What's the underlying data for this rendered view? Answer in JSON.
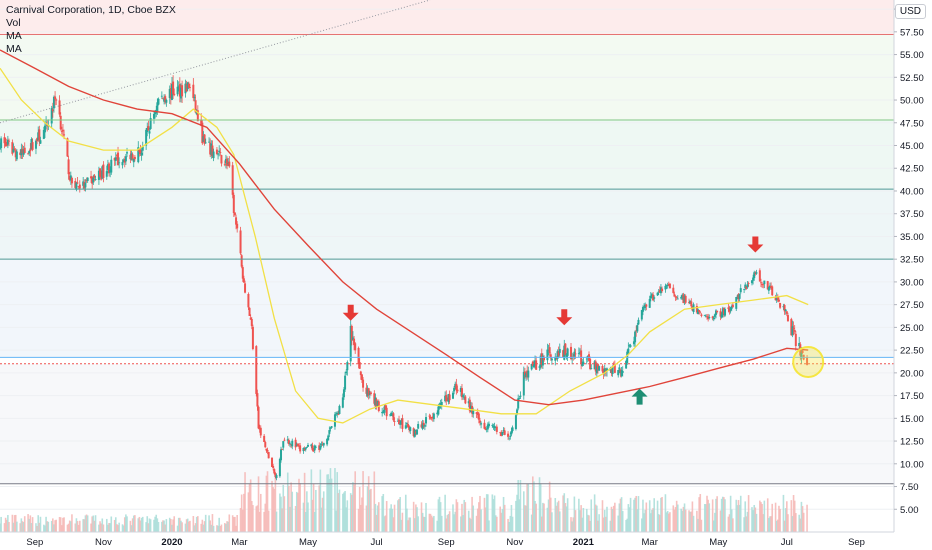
{
  "legend": {
    "title": "Carnival Corporation, 1D, Cboe BZX",
    "items": [
      "Vol",
      "MA",
      "MA"
    ],
    "currency": "USD"
  },
  "colors": {
    "up": "#26a69a",
    "down": "#ef5350",
    "ma_short": "#f2e046",
    "ma_long": "#e0443a",
    "arrow_down": "#e53935",
    "arrow_up": "#1e8e74",
    "circle": "#f5e642",
    "level_red": "#e57373",
    "level_green": "#81c784",
    "level_teal": "#4f9a94",
    "level_gray": "#787b86",
    "price_line": "#ef5350",
    "blue_line": "#64b5f6"
  },
  "chart_data": {
    "type": "candlestick",
    "title": "Carnival Corporation, 1D, Cboe BZX",
    "y_ticks": [
      "5.00",
      "7.50",
      "10.00",
      "12.50",
      "15.00",
      "17.50",
      "20.00",
      "22.50",
      "25.00",
      "27.50",
      "30.00",
      "32.50",
      "35.00",
      "37.50",
      "40.00",
      "42.50",
      "45.00",
      "47.50",
      "50.00",
      "52.50",
      "55.00",
      "57.50",
      "60.00"
    ],
    "x_ticks": [
      "Sep",
      "Nov",
      "2020",
      "Mar",
      "May",
      "Jul",
      "Sep",
      "Nov",
      "2021",
      "Mar",
      "May",
      "Jul",
      "Sep"
    ],
    "ylim": [
      2.5,
      61
    ],
    "price_path": [
      [
        "2019-08-01",
        45.5
      ],
      [
        "2019-08-20",
        44.0
      ],
      [
        "2019-09-10",
        46.5
      ],
      [
        "2019-09-20",
        50.5
      ],
      [
        "2019-10-03",
        41.0
      ],
      [
        "2019-10-15",
        40.5
      ],
      [
        "2019-11-15",
        43.5
      ],
      [
        "2019-12-05",
        44.5
      ],
      [
        "2019-12-20",
        50.0
      ],
      [
        "2020-01-02",
        51.0
      ],
      [
        "2020-01-17",
        51.5
      ],
      [
        "2020-01-30",
        45.0
      ],
      [
        "2020-02-10",
        44.0
      ],
      [
        "2020-02-20",
        43.0
      ],
      [
        "2020-02-25",
        38.0
      ],
      [
        "2020-03-05",
        30.0
      ],
      [
        "2020-03-12",
        25.0
      ],
      [
        "2020-03-18",
        14.0
      ],
      [
        "2020-04-02",
        8.5
      ],
      [
        "2020-04-10",
        13.0
      ],
      [
        "2020-04-24",
        11.5
      ],
      [
        "2020-05-14",
        12.0
      ],
      [
        "2020-06-01",
        17.0
      ],
      [
        "2020-06-08",
        24.5
      ],
      [
        "2020-06-20",
        18.0
      ],
      [
        "2020-07-10",
        15.5
      ],
      [
        "2020-08-03",
        13.5
      ],
      [
        "2020-08-25",
        16.0
      ],
      [
        "2020-09-10",
        18.5
      ],
      [
        "2020-10-01",
        14.5
      ],
      [
        "2020-10-28",
        13.0
      ],
      [
        "2020-11-09",
        19.5
      ],
      [
        "2020-11-25",
        21.5
      ],
      [
        "2020-12-10",
        22.5
      ],
      [
        "2020-12-31",
        21.5
      ],
      [
        "2021-01-20",
        20.0
      ],
      [
        "2021-02-05",
        20.5
      ],
      [
        "2021-02-25",
        27.5
      ],
      [
        "2021-03-15",
        29.5
      ],
      [
        "2021-04-01",
        28.0
      ],
      [
        "2021-04-20",
        26.0
      ],
      [
        "2021-05-10",
        27.0
      ],
      [
        "2021-06-03",
        31.0
      ],
      [
        "2021-06-20",
        28.5
      ],
      [
        "2021-07-01",
        26.5
      ],
      [
        "2021-07-10",
        23.0
      ],
      [
        "2021-07-19",
        21.0
      ]
    ],
    "moving_averages": [
      {
        "name": "MA",
        "color": "#f2e046",
        "values": [
          [
            "2019-08-01",
            53.5
          ],
          [
            "2019-08-20",
            50.0
          ],
          [
            "2019-09-10",
            47.5
          ],
          [
            "2019-10-01",
            45.5
          ],
          [
            "2019-11-01",
            44.5
          ],
          [
            "2019-12-01",
            44.5
          ],
          [
            "2020-01-01",
            47.0
          ],
          [
            "2020-01-20",
            49.0
          ],
          [
            "2020-02-10",
            47.0
          ],
          [
            "2020-02-25",
            44.0
          ],
          [
            "2020-03-15",
            35.0
          ],
          [
            "2020-04-01",
            26.0
          ],
          [
            "2020-04-20",
            18.0
          ],
          [
            "2020-05-10",
            15.0
          ],
          [
            "2020-06-01",
            14.5
          ],
          [
            "2020-06-25",
            16.0
          ],
          [
            "2020-07-20",
            17.0
          ],
          [
            "2020-08-20",
            16.5
          ],
          [
            "2020-09-20",
            16.0
          ],
          [
            "2020-10-20",
            15.5
          ],
          [
            "2020-11-20",
            15.5
          ],
          [
            "2020-12-20",
            18.0
          ],
          [
            "2021-01-20",
            20.0
          ],
          [
            "2021-02-10",
            22.0
          ],
          [
            "2021-03-01",
            24.5
          ],
          [
            "2021-04-01",
            27.0
          ],
          [
            "2021-05-01",
            27.5
          ],
          [
            "2021-06-01",
            28.0
          ],
          [
            "2021-07-01",
            28.5
          ],
          [
            "2021-07-20",
            27.5
          ]
        ]
      },
      {
        "name": "MA",
        "color": "#e0443a",
        "values": [
          [
            "2019-08-01",
            55.5
          ],
          [
            "2019-09-01",
            53.5
          ],
          [
            "2019-10-01",
            51.5
          ],
          [
            "2019-11-01",
            50.0
          ],
          [
            "2019-12-01",
            49.0
          ],
          [
            "2020-01-01",
            48.5
          ],
          [
            "2020-02-01",
            47.0
          ],
          [
            "2020-03-01",
            43.0
          ],
          [
            "2020-04-01",
            38.0
          ],
          [
            "2020-05-01",
            34.0
          ],
          [
            "2020-06-01",
            30.0
          ],
          [
            "2020-07-01",
            27.0
          ],
          [
            "2020-08-01",
            24.5
          ],
          [
            "2020-09-01",
            22.0
          ],
          [
            "2020-10-01",
            19.5
          ],
          [
            "2020-11-01",
            17.0
          ],
          [
            "2020-12-01",
            16.5
          ],
          [
            "2021-01-01",
            17.0
          ],
          [
            "2021-02-01",
            17.8
          ],
          [
            "2021-03-01",
            18.5
          ],
          [
            "2021-04-01",
            19.5
          ],
          [
            "2021-05-01",
            20.5
          ],
          [
            "2021-06-01",
            21.5
          ],
          [
            "2021-07-01",
            22.7
          ],
          [
            "2021-07-20",
            22.5
          ]
        ]
      }
    ],
    "horizontal_levels": [
      {
        "price": 57.2,
        "color": "#e57373"
      },
      {
        "price": 47.8,
        "color": "#81c784"
      },
      {
        "price": 40.2,
        "color": "#4f9a94"
      },
      {
        "price": 32.5,
        "color": "#4f9a94"
      },
      {
        "price": 21.7,
        "color": "#64b5f6"
      },
      {
        "price": 21.0,
        "color": "#ef5350"
      },
      {
        "price": 7.8,
        "color": "#787b86"
      }
    ],
    "markers": [
      {
        "type": "arrow-down",
        "date": "2020-06-08",
        "price": 26.5
      },
      {
        "type": "arrow-down",
        "date": "2020-12-15",
        "price": 26.0
      },
      {
        "type": "arrow-up",
        "date": "2021-02-20",
        "price": 17.5
      },
      {
        "type": "arrow-down",
        "date": "2021-06-03",
        "price": 34.0
      },
      {
        "type": "circle",
        "date": "2021-07-20",
        "price": 21.2
      }
    ]
  }
}
